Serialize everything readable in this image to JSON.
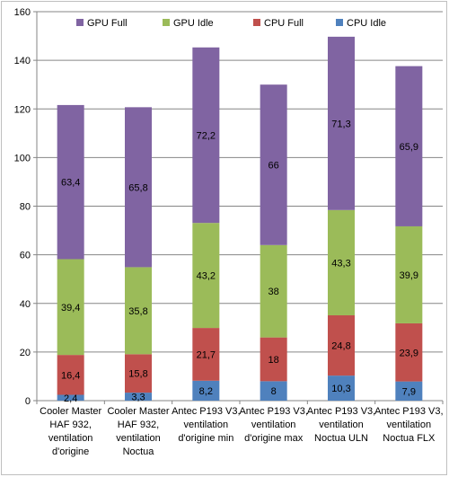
{
  "chart_data": {
    "type": "bar",
    "stacked": true,
    "categories": [
      [
        "Cooler Master",
        "HAF 932,",
        "ventilation",
        "d'origine"
      ],
      [
        "Cooler Master",
        "HAF 932,",
        "ventilation",
        "Noctua"
      ],
      [
        "Antec P193 V3,",
        "ventilation",
        "d'origine min"
      ],
      [
        "Antec P193 V3,",
        "ventilation",
        "d'origine max"
      ],
      [
        "Antec P193 V3,",
        "ventilation",
        "Noctua ULN"
      ],
      [
        "Antec P193 V3,",
        "ventilation",
        "Noctua FLX"
      ]
    ],
    "series": [
      {
        "name": "CPU Idle",
        "color": "#4f81bd",
        "values": [
          2.4,
          3.3,
          8.2,
          8,
          10.3,
          7.9
        ],
        "labels": [
          "2,4",
          "3,3",
          "8,2",
          "8",
          "10,3",
          "7,9"
        ]
      },
      {
        "name": "CPU Full",
        "color": "#c0504d",
        "values": [
          16.4,
          15.8,
          21.7,
          18,
          24.8,
          23.9
        ],
        "labels": [
          "16,4",
          "15,8",
          "21,7",
          "18",
          "24,8",
          "23,9"
        ]
      },
      {
        "name": "GPU Idle",
        "color": "#9bbb59",
        "values": [
          39.4,
          35.8,
          43.2,
          38,
          43.3,
          39.9
        ],
        "labels": [
          "39,4",
          "35,8",
          "43,2",
          "38",
          "43,3",
          "39,9"
        ]
      },
      {
        "name": "GPU Full",
        "color": "#8064a2",
        "values": [
          63.4,
          65.8,
          72.2,
          66,
          71.3,
          65.9
        ],
        "labels": [
          "63,4",
          "65,8",
          "72,2",
          "66",
          "71,3",
          "65,9"
        ]
      }
    ],
    "legend_order": [
      "GPU Full",
      "GPU Idle",
      "CPU Full",
      "CPU Idle"
    ],
    "legend_position": "top",
    "ylim": [
      0,
      160
    ],
    "yticks": [
      "0",
      "20",
      "40",
      "60",
      "80",
      "100",
      "120",
      "140",
      "160"
    ],
    "grid": true,
    "title": "",
    "xlabel": "",
    "ylabel": ""
  }
}
